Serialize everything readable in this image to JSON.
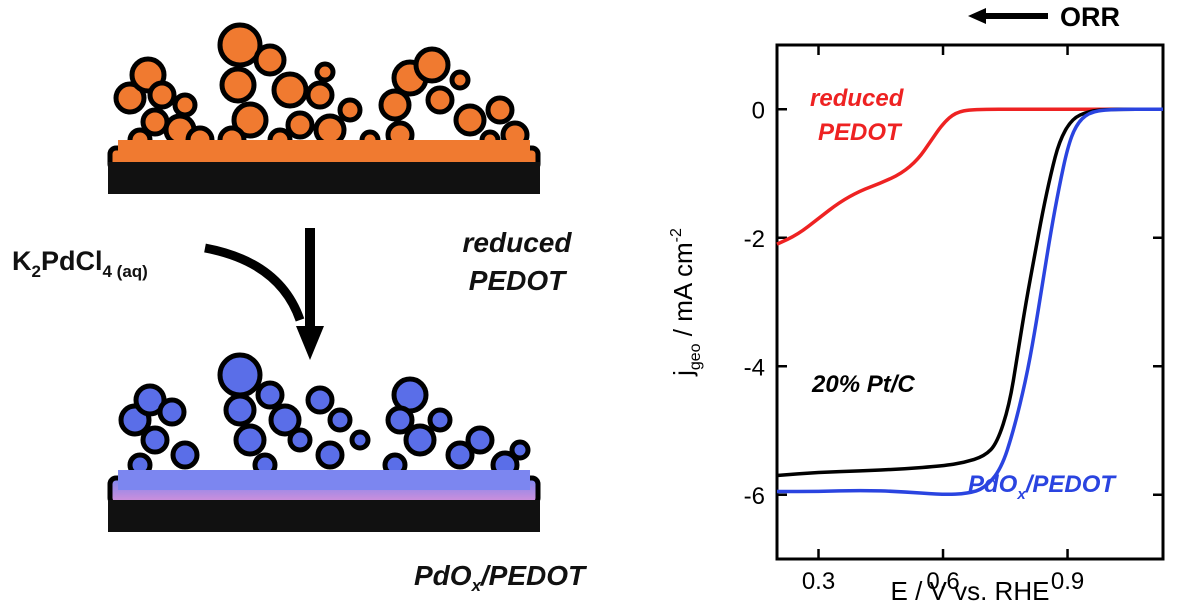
{
  "left": {
    "reagent": "K",
    "reagent_sub1": "2",
    "reagent_mid": "PdCl",
    "reagent_sub2": "4",
    "reagent_sub3": " (aq)",
    "reduced_line1": "reduced",
    "reduced_line2": "PEDOT",
    "pdox_main": "PdO",
    "pdox_sub": "x",
    "pdox_tail": "/PEDOT",
    "colors": {
      "orange": "#f07a30",
      "blue": "#5a6ee8",
      "substrate": "#111111",
      "pink": "#d08ad8"
    }
  },
  "chart_data": {
    "type": "line",
    "xlabel": "E / V vs. RHE",
    "ylabel_main": "j",
    "ylabel_sub": "geo",
    "ylabel_tail": " / mA cm",
    "ylabel_sup": "-2",
    "xlim": [
      0.2,
      1.13
    ],
    "ylim": [
      -7,
      1
    ],
    "xticks": [
      0.3,
      0.6,
      0.9
    ],
    "xtick_labels": [
      "0.3",
      "0.6",
      "0.9"
    ],
    "yticks": [
      0,
      -2,
      -4,
      -6
    ],
    "ytick_labels": [
      "0",
      "-2",
      "-4",
      "-6"
    ],
    "grid": false,
    "arrow_label": "ORR",
    "series": [
      {
        "name": "reduced PEDOT",
        "label_line1": "reduced",
        "label_line2": "PEDOT",
        "color": "#ee2222",
        "points": [
          [
            0.2,
            -2.1
          ],
          [
            0.25,
            -1.95
          ],
          [
            0.3,
            -1.7
          ],
          [
            0.35,
            -1.45
          ],
          [
            0.4,
            -1.27
          ],
          [
            0.45,
            -1.15
          ],
          [
            0.5,
            -1.0
          ],
          [
            0.54,
            -0.78
          ],
          [
            0.57,
            -0.5
          ],
          [
            0.6,
            -0.22
          ],
          [
            0.63,
            -0.05
          ],
          [
            0.67,
            0.0
          ],
          [
            0.8,
            0.0
          ],
          [
            1.13,
            0.0
          ]
        ]
      },
      {
        "name": "20% Pt/C",
        "label_main": "20% Pt/C",
        "color": "#000000",
        "points": [
          [
            0.2,
            -5.7
          ],
          [
            0.3,
            -5.65
          ],
          [
            0.4,
            -5.63
          ],
          [
            0.5,
            -5.6
          ],
          [
            0.6,
            -5.55
          ],
          [
            0.65,
            -5.5
          ],
          [
            0.7,
            -5.4
          ],
          [
            0.73,
            -5.2
          ],
          [
            0.76,
            -4.6
          ],
          [
            0.78,
            -3.8
          ],
          [
            0.8,
            -3.0
          ],
          [
            0.82,
            -2.3
          ],
          [
            0.84,
            -1.6
          ],
          [
            0.86,
            -1.0
          ],
          [
            0.88,
            -0.5
          ],
          [
            0.91,
            -0.15
          ],
          [
            0.95,
            -0.03
          ],
          [
            1.0,
            0.0
          ],
          [
            1.13,
            0.0
          ]
        ]
      },
      {
        "name": "PdOx/PEDOT",
        "label_main": "PdO",
        "label_sub": "x",
        "label_tail": "/PEDOT",
        "color": "#2a44e0",
        "points": [
          [
            0.2,
            -5.95
          ],
          [
            0.3,
            -5.95
          ],
          [
            0.4,
            -5.93
          ],
          [
            0.5,
            -5.95
          ],
          [
            0.6,
            -6.0
          ],
          [
            0.66,
            -5.98
          ],
          [
            0.7,
            -5.9
          ],
          [
            0.74,
            -5.6
          ],
          [
            0.77,
            -5.0
          ],
          [
            0.8,
            -4.2
          ],
          [
            0.82,
            -3.5
          ],
          [
            0.84,
            -2.7
          ],
          [
            0.86,
            -1.9
          ],
          [
            0.88,
            -1.2
          ],
          [
            0.9,
            -0.6
          ],
          [
            0.92,
            -0.25
          ],
          [
            0.95,
            -0.05
          ],
          [
            1.0,
            0.0
          ],
          [
            1.13,
            0.0
          ]
        ]
      }
    ]
  }
}
